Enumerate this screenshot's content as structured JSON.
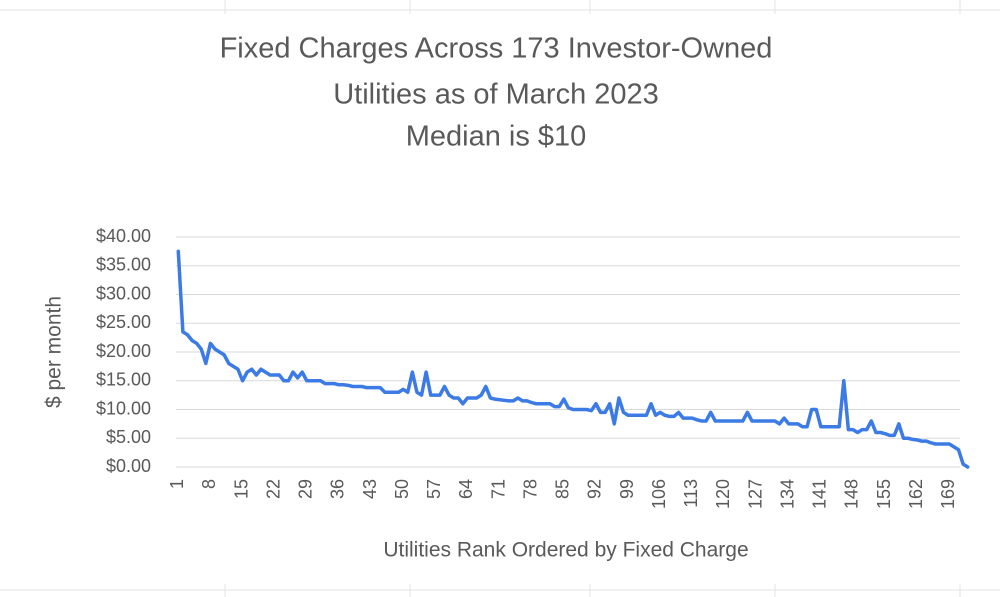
{
  "chart_data": {
    "type": "line",
    "title": [
      "Fixed Charges Across 173 Investor-Owned",
      "Utilities as of March 2023",
      "Median is $10"
    ],
    "x_label": "Utilities Rank Ordered by Fixed Charge",
    "y_label": "$ per month",
    "categories": [
      "1",
      null,
      null,
      null,
      null,
      null,
      null,
      "8",
      null,
      null,
      null,
      null,
      null,
      null,
      "15",
      null,
      null,
      null,
      null,
      null,
      null,
      "22",
      null,
      null,
      null,
      null,
      null,
      null,
      "29",
      null,
      null,
      null,
      null,
      null,
      null,
      "36",
      null,
      null,
      null,
      null,
      null,
      null,
      "43",
      null,
      null,
      null,
      null,
      null,
      null,
      "50",
      null,
      null,
      null,
      null,
      null,
      null,
      "57",
      null,
      null,
      null,
      null,
      null,
      null,
      "64",
      null,
      null,
      null,
      null,
      null,
      null,
      "71",
      null,
      null,
      null,
      null,
      null,
      null,
      "78",
      null,
      null,
      null,
      null,
      null,
      null,
      "85",
      null,
      null,
      null,
      null,
      null,
      null,
      "92",
      null,
      null,
      null,
      null,
      null,
      null,
      "99",
      null,
      null,
      null,
      null,
      null,
      null,
      "106",
      null,
      null,
      null,
      null,
      null,
      null,
      "113",
      null,
      null,
      null,
      null,
      null,
      null,
      "120",
      null,
      null,
      null,
      null,
      null,
      null,
      "127",
      null,
      null,
      null,
      null,
      null,
      null,
      "134",
      null,
      null,
      null,
      null,
      null,
      null,
      "141",
      null,
      null,
      null,
      null,
      null,
      null,
      "148",
      null,
      null,
      null,
      null,
      null,
      null,
      "155",
      null,
      null,
      null,
      null,
      null,
      null,
      "162",
      null,
      null,
      null,
      null,
      null,
      null,
      "169",
      null,
      null,
      null,
      null
    ],
    "series": [
      {
        "name": "Fixed Charge",
        "color": "#3c7be6",
        "values": [
          37.5,
          23.5,
          23,
          22,
          21.5,
          20.5,
          18,
          21.5,
          20.5,
          20,
          19.5,
          18,
          17.5,
          17,
          15,
          16.5,
          17,
          16,
          17,
          16.5,
          16,
          16,
          16,
          15,
          15,
          16.5,
          15.5,
          16.5,
          15,
          15,
          15,
          15,
          14.5,
          14.5,
          14.5,
          14.3,
          14.3,
          14.2,
          14,
          14,
          14,
          13.8,
          13.8,
          13.8,
          13.8,
          13,
          13,
          13,
          13,
          13.5,
          13,
          16.5,
          13,
          12.5,
          16.5,
          12.5,
          12.5,
          12.5,
          14,
          12.5,
          12,
          12,
          11,
          12,
          12,
          12,
          12.5,
          14,
          12,
          11.8,
          11.7,
          11.6,
          11.5,
          11.5,
          12,
          11.5,
          11.5,
          11.2,
          11,
          11,
          11,
          11,
          10.5,
          10.5,
          11.8,
          10.3,
          10,
          10,
          10,
          10,
          9.8,
          11,
          9.5,
          9.5,
          11,
          7.5,
          12,
          9.5,
          9,
          9,
          9,
          9,
          9,
          11,
          9,
          9.5,
          9,
          8.8,
          8.8,
          9.5,
          8.5,
          8.5,
          8.5,
          8.2,
          8,
          8,
          9.5,
          8,
          8,
          8,
          8,
          8,
          8,
          8,
          9.5,
          8,
          8,
          8,
          8,
          8,
          8,
          7.5,
          8.5,
          7.5,
          7.5,
          7.5,
          7,
          7,
          10,
          10,
          7,
          7,
          7,
          7,
          7,
          15,
          6.5,
          6.5,
          6,
          6.5,
          6.5,
          8,
          6,
          6,
          5.8,
          5.5,
          5.5,
          7.5,
          5,
          5,
          4.8,
          4.7,
          4.5,
          4.5,
          4.2,
          4,
          4,
          4,
          4,
          3.5,
          3,
          0.5,
          0
        ]
      }
    ],
    "ylim": [
      0,
      40
    ],
    "yticks": [
      {
        "value": 0,
        "label": "$0.00"
      },
      {
        "value": 5,
        "label": "$5.00"
      },
      {
        "value": 10,
        "label": "$10.00"
      },
      {
        "value": 15,
        "label": "$15.00"
      },
      {
        "value": 20,
        "label": "$20.00"
      },
      {
        "value": 25,
        "label": "$25.00"
      },
      {
        "value": 30,
        "label": "$30.00"
      },
      {
        "value": 35,
        "label": "$35.00"
      },
      {
        "value": 40,
        "label": "$40.00"
      }
    ],
    "grid": true
  }
}
